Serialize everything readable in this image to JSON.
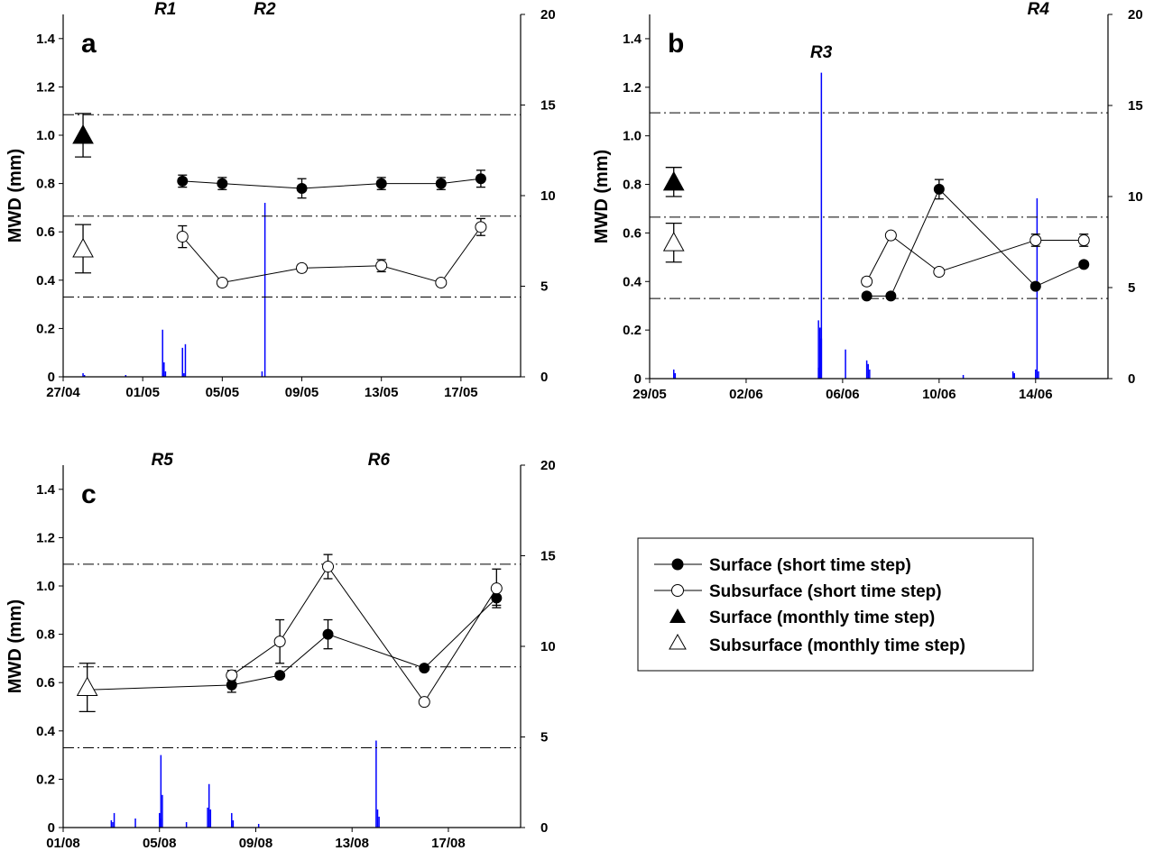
{
  "ylabel": "MWD (mm)",
  "legend": {
    "items": [
      {
        "label": "Surface (short time step)",
        "marker": "filled-circle"
      },
      {
        "label": "Subsurface (short time step)",
        "marker": "open-circle"
      },
      {
        "label": "Surface (monthly time step)",
        "marker": "filled-triangle"
      },
      {
        "label": "Subsurface (monthly time step)",
        "marker": "open-triangle"
      }
    ]
  },
  "colors": {
    "rain": "#0000ff",
    "line": "#000000"
  },
  "chart_data": [
    {
      "panel": "a",
      "type": "line",
      "x_range": [
        "27/04",
        "20/05"
      ],
      "x_ticks": [
        "27/04",
        "01/05",
        "05/05",
        "09/05",
        "13/05",
        "17/05"
      ],
      "ylim": [
        0,
        1.5
      ],
      "y_ticks": [
        "0",
        "0.2",
        "0.4",
        "0.6",
        "0.8",
        "1.0",
        "1.2",
        "1.4"
      ],
      "y2lim": [
        0,
        20
      ],
      "y2_ticks": [
        "0",
        "5",
        "10",
        "15",
        "20"
      ],
      "hlines": [
        0.33,
        0.665,
        1.085
      ],
      "series": [
        {
          "marker": "filled-triangle",
          "x": [
            "28/04"
          ],
          "y": [
            1.0
          ],
          "err": [
            0.09
          ]
        },
        {
          "marker": "filled-circle",
          "x": [
            "03/05",
            "05/05",
            "09/05",
            "13/05",
            "16/05",
            "18/05"
          ],
          "y": [
            0.81,
            0.8,
            0.78,
            0.8,
            0.8,
            0.82
          ],
          "err": [
            0.025,
            0.025,
            0.04,
            0.025,
            0.025,
            0.035
          ]
        },
        {
          "marker": "open-triangle",
          "x": [
            "28/04"
          ],
          "y": [
            0.53
          ],
          "err": [
            0.1
          ]
        },
        {
          "marker": "open-circle",
          "x": [
            "03/05",
            "05/05",
            "09/05",
            "13/05",
            "16/05",
            "18/05"
          ],
          "y": [
            0.58,
            0.39,
            0.45,
            0.46,
            0.39,
            0.62
          ],
          "err": [
            0.045,
            0.015,
            0.015,
            0.025,
            0.01,
            0.035
          ]
        }
      ],
      "rain": {
        "x": [
          "28/04",
          "28/04",
          "30/04",
          "02/05",
          "02/05",
          "02/05",
          "02/05",
          "02/05",
          "03/05",
          "03/05",
          "03/05",
          "07/05",
          "07/05"
        ],
        "y": [
          0.2,
          0.1,
          0.1,
          2.6,
          0.8,
          0.3,
          0.2,
          0.1,
          1.8,
          1.6,
          0.2,
          9.6,
          0.3
        ]
      },
      "annotations": [
        {
          "text": "R1",
          "x": "02/05"
        },
        {
          "text": "R2",
          "x": "07/05"
        }
      ]
    },
    {
      "panel": "b",
      "type": "line",
      "x_range": [
        "29/05",
        "17/06"
      ],
      "x_ticks": [
        "29/05",
        "02/06",
        "06/06",
        "10/06",
        "14/06"
      ],
      "ylim": [
        0,
        1.5
      ],
      "y_ticks": [
        "0",
        "0.2",
        "0.4",
        "0.6",
        "0.8",
        "1.0",
        "1.2",
        "1.4"
      ],
      "y2lim": [
        0,
        20
      ],
      "y2_ticks": [
        "0",
        "5",
        "10",
        "15",
        "20"
      ],
      "hlines": [
        0.33,
        0.665,
        1.095
      ],
      "series": [
        {
          "marker": "filled-triangle",
          "x": [
            "30/05"
          ],
          "y": [
            0.81
          ],
          "err": [
            0.06
          ]
        },
        {
          "marker": "filled-circle",
          "x": [
            "07/06",
            "08/06",
            "10/06",
            "14/06",
            "16/06"
          ],
          "y": [
            0.34,
            0.34,
            0.78,
            0.38,
            0.47
          ],
          "err": [
            0.01,
            0.01,
            0.04,
            0.01,
            0.01
          ]
        },
        {
          "marker": "open-triangle",
          "x": [
            "30/05"
          ],
          "y": [
            0.56
          ],
          "err": [
            0.08
          ]
        },
        {
          "marker": "open-circle",
          "x": [
            "07/06",
            "08/06",
            "10/06",
            "14/06",
            "16/06"
          ],
          "y": [
            0.4,
            0.59,
            0.44,
            0.57,
            0.57
          ],
          "err": [
            0.015,
            0.01,
            0.01,
            0.025,
            0.025
          ]
        }
      ],
      "rain": {
        "x": [
          "30/05",
          "30/05",
          "05/06",
          "05/06",
          "05/06",
          "05/06",
          "05/06",
          "05/06",
          "06/06",
          "07/06",
          "07/06",
          "07/06",
          "11/06",
          "13/06",
          "13/06",
          "14/06",
          "14/06",
          "14/06"
        ],
        "y": [
          0.5,
          0.3,
          16.8,
          3.2,
          2.8,
          2.2,
          0.6,
          0.3,
          1.6,
          1.0,
          0.8,
          0.5,
          0.2,
          0.4,
          0.3,
          0.5,
          9.9,
          0.4
        ]
      },
      "annotations": [
        {
          "text": "R3",
          "x": "05/06"
        },
        {
          "text": "R4",
          "x": "14/06"
        }
      ]
    },
    {
      "panel": "c",
      "type": "line",
      "x_range": [
        "01/08",
        "20/08"
      ],
      "x_ticks": [
        "01/08",
        "05/08",
        "09/08",
        "13/08",
        "17/08"
      ],
      "ylim": [
        0,
        1.5
      ],
      "y_ticks": [
        "0",
        "0.2",
        "0.4",
        "0.6",
        "0.8",
        "1.0",
        "1.2",
        "1.4"
      ],
      "y2lim": [
        0,
        20
      ],
      "y2_ticks": [
        "0",
        "5",
        "10",
        "15",
        "20"
      ],
      "hlines": [
        0.33,
        0.665,
        1.09
      ],
      "series": [
        {
          "marker": "filled-circle",
          "x": [
            "02/08",
            "08/08",
            "10/08",
            "12/08",
            "16/08",
            "19/08"
          ],
          "y": [
            0.57,
            0.59,
            0.63,
            0.8,
            0.66,
            0.95
          ],
          "err": [
            0,
            0.03,
            0,
            0.06,
            0,
            0.03
          ]
        },
        {
          "marker": "open-triangle",
          "x": [
            "02/08"
          ],
          "y": [
            0.58
          ],
          "err": [
            0.1
          ]
        },
        {
          "marker": "open-circle",
          "x": [
            "08/08",
            "10/08",
            "12/08",
            "16/08",
            "19/08"
          ],
          "y": [
            0.63,
            0.77,
            1.08,
            0.52,
            0.99
          ],
          "err": [
            0.02,
            0.09,
            0.05,
            0,
            0.08
          ]
        }
      ],
      "rain": {
        "x": [
          "03/08",
          "03/08",
          "03/08",
          "04/08",
          "05/08",
          "05/08",
          "05/08",
          "05/08",
          "06/08",
          "07/08",
          "07/08",
          "07/08",
          "08/08",
          "08/08",
          "09/08",
          "14/08",
          "14/08",
          "14/08"
        ],
        "y": [
          0.4,
          0.3,
          0.8,
          0.5,
          4.0,
          1.8,
          0.8,
          0.5,
          0.3,
          1.1,
          2.4,
          1.0,
          0.8,
          0.4,
          0.2,
          4.8,
          1.0,
          0.6
        ]
      },
      "annotations": [
        {
          "text": "R5",
          "x": "05/08"
        },
        {
          "text": "R6",
          "x": "14/08"
        }
      ]
    }
  ]
}
